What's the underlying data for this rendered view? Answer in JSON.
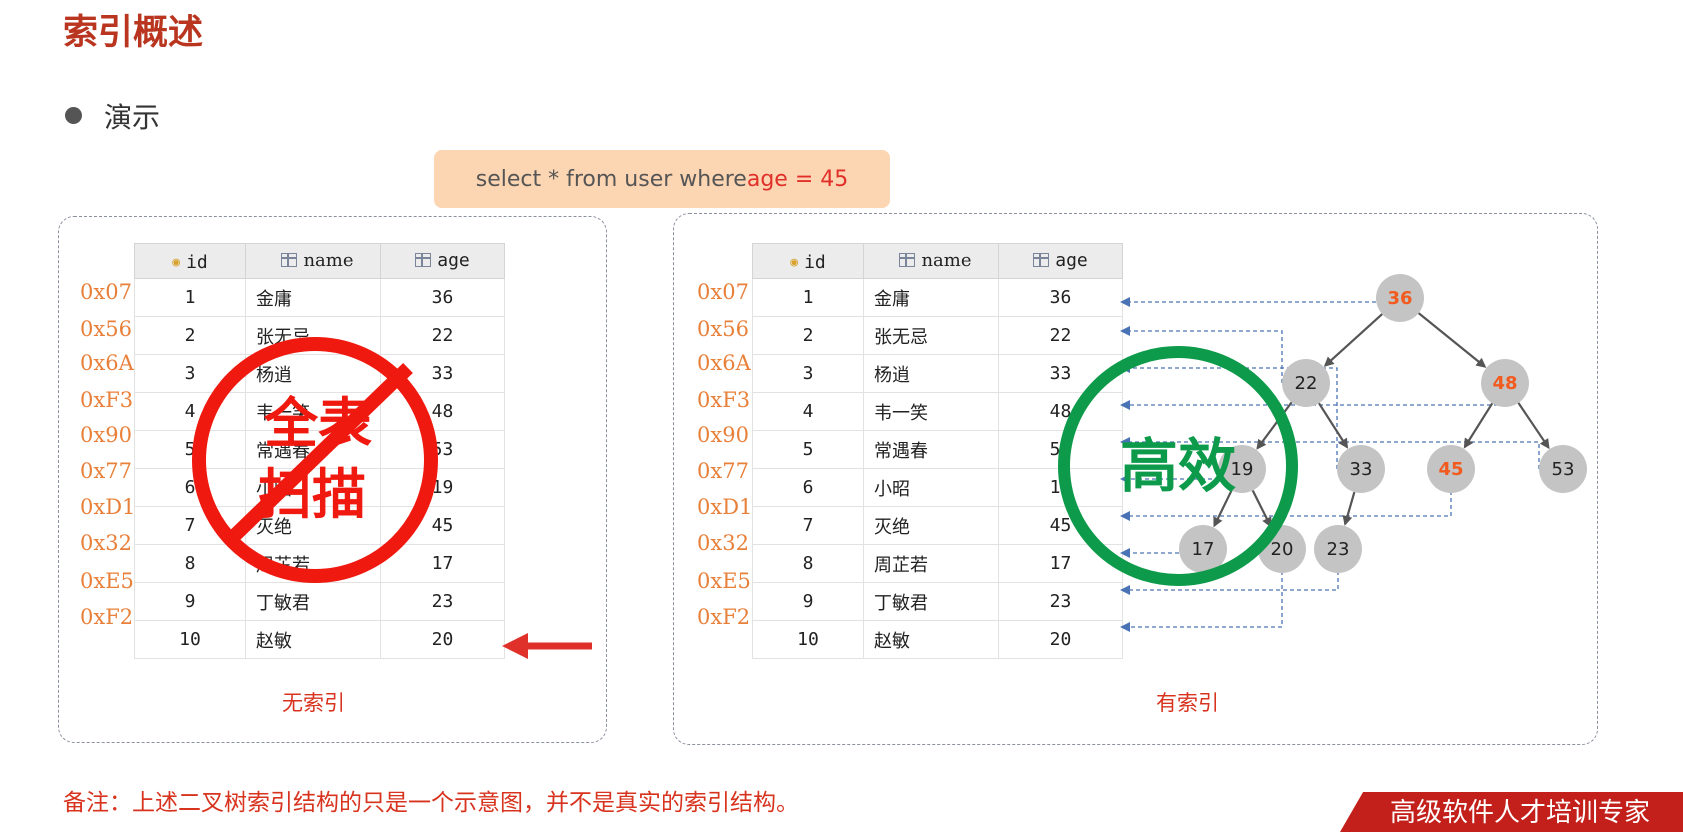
{
  "title": "索引概述",
  "subtitle": "演示",
  "sql": {
    "prefix": "select * from user where ",
    "highlight": "age = 45"
  },
  "table": {
    "headers": [
      "id",
      "name",
      "age"
    ],
    "rows": [
      {
        "addr": "0x07",
        "id": "1",
        "name": "金庸",
        "age": "36"
      },
      {
        "addr": "0x56",
        "id": "2",
        "name": "张无忌",
        "age": "22"
      },
      {
        "addr": "0x6A",
        "id": "3",
        "name": "杨逍",
        "age": "33"
      },
      {
        "addr": "0xF3",
        "id": "4",
        "name": "韦一笑",
        "age": "48"
      },
      {
        "addr": "0x90",
        "id": "5",
        "name": "常遇春",
        "age": "53"
      },
      {
        "addr": "0x77",
        "id": "6",
        "name": "小昭",
        "age": "19"
      },
      {
        "addr": "0xD1",
        "id": "7",
        "name": "灭绝",
        "age": "45"
      },
      {
        "addr": "0x32",
        "id": "8",
        "name": "周芷若",
        "age": "17"
      },
      {
        "addr": "0xE5",
        "id": "9",
        "name": "丁敏君",
        "age": "23"
      },
      {
        "addr": "0xF2",
        "id": "10",
        "name": "赵敏",
        "age": "20"
      }
    ]
  },
  "left_panel": {
    "caption": "无索引",
    "stamp_line1": "全表",
    "stamp_line2": "扫描"
  },
  "right_panel": {
    "caption": "有索引",
    "stamp": "高效"
  },
  "tree": {
    "nodes": [
      {
        "value": "36",
        "highlight": true
      },
      {
        "value": "22",
        "highlight": false
      },
      {
        "value": "48",
        "highlight": true
      },
      {
        "value": "19",
        "highlight": false
      },
      {
        "value": "33",
        "highlight": false
      },
      {
        "value": "45",
        "highlight": true
      },
      {
        "value": "53",
        "highlight": false
      },
      {
        "value": "17",
        "highlight": false
      },
      {
        "value": "20",
        "highlight": false
      },
      {
        "value": "23",
        "highlight": false
      }
    ],
    "edges": [
      [
        "36",
        "22"
      ],
      [
        "36",
        "48"
      ],
      [
        "22",
        "19"
      ],
      [
        "22",
        "33"
      ],
      [
        "48",
        "45"
      ],
      [
        "48",
        "53"
      ],
      [
        "19",
        "17"
      ],
      [
        "19",
        "20"
      ],
      [
        "33",
        "23"
      ]
    ],
    "pointers": [
      "36",
      "22",
      "33",
      "48",
      "53",
      "19",
      "45",
      "17",
      "23",
      "20"
    ]
  },
  "note": "备注：上述二叉树索引结构的只是一个示意图，并不是真实的索引结构。",
  "banner": "高级软件人才培训专家",
  "colors": {
    "title": "#b9351f",
    "accent_red": "#e0302a",
    "address": "#e8803a",
    "node_fill": "#c4c4c4",
    "node_highlight_text": "#f25a1e",
    "stamp_red": "#f0190f",
    "stamp_green": "#0d9b4b",
    "pointer_blue": "#4a73b5"
  }
}
